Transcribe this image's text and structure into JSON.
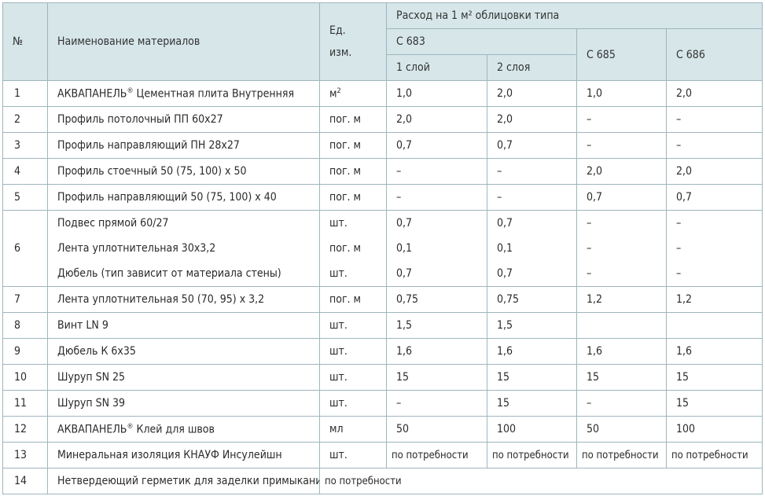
{
  "header": {
    "num": "№",
    "name": "Наименование материалов",
    "unit_line1": "Ед.",
    "unit_line2": "изм.",
    "consumption": "Расход на 1 м² облицовки типа",
    "c683": "С 683",
    "layer1": "1 слой",
    "layer2": "2 слоя",
    "c685": "С 685",
    "c686": "С 686"
  },
  "rows": [
    {
      "num": "1",
      "name": "АКВАПАНЕЛЬ® Цементная плита Внутренняя",
      "unit": "м²",
      "l1": "1,0",
      "l2": "2,0",
      "c685": "1,0",
      "c686": "2,0"
    },
    {
      "num": "2",
      "name": "Профиль потолочный ПП 60х27",
      "unit": "пог. м",
      "l1": "2,0",
      "l2": "2,0",
      "c685": "–",
      "c686": "–"
    },
    {
      "num": "3",
      "name": "Профиль направляющий ПН 28х27",
      "unit": "пог. м",
      "l1": "0,7",
      "l2": "0,7",
      "c685": "–",
      "c686": "–"
    },
    {
      "num": "4",
      "name": "Профиль стоечный 50 (75, 100) х 50",
      "unit": "пог. м",
      "l1": "–",
      "l2": "–",
      "c685": "2,0",
      "c686": "2,0"
    },
    {
      "num": "5",
      "name": "Профиль направляющий 50 (75, 100) х 40",
      "unit": "пог. м",
      "l1": "–",
      "l2": "–",
      "c685": "0,7",
      "c686": "0,7"
    }
  ],
  "row6": {
    "num": "6",
    "items": [
      {
        "name": "Подвес прямой 60/27",
        "unit": "шт.",
        "l1": "0,7",
        "l2": "0,7",
        "c685": "–",
        "c686": "–"
      },
      {
        "name": "Лента уплотнительная 30х3,2",
        "unit": "пог. м",
        "l1": "0,1",
        "l2": "0,1",
        "c685": "–",
        "c686": "–"
      },
      {
        "name": "Дюбель (тип зависит от материала стены)",
        "unit": "шт.",
        "l1": "0,7",
        "l2": "0,7",
        "c685": "–",
        "c686": "–"
      }
    ]
  },
  "rows2": [
    {
      "num": "7",
      "name": "Лента уплотнительная 50 (70, 95) х 3,2",
      "unit": "пог. м",
      "l1": "0,75",
      "l2": "0,75",
      "c685": "1,2",
      "c686": "1,2"
    },
    {
      "num": "8",
      "name": "Винт LN 9",
      "unit": "шт.",
      "l1": "1,5",
      "l2": "1,5",
      "c685": "",
      "c686": ""
    },
    {
      "num": "9",
      "name": "Дюбель К 6х35",
      "unit": "шт.",
      "l1": "1,6",
      "l2": "1,6",
      "c685": "1,6",
      "c686": "1,6"
    },
    {
      "num": "10",
      "name": "Шуруп SN 25",
      "unit": "шт.",
      "l1": "15",
      "l2": "15",
      "c685": "15",
      "c686": "15"
    },
    {
      "num": "11",
      "name": "Шуруп SN 39",
      "unit": "шт.",
      "l1": "–",
      "l2": "15",
      "c685": "–",
      "c686": "15"
    },
    {
      "num": "12",
      "name": "АКВАПАНЕЛЬ® Клей для швов",
      "unit": "мл",
      "l1": "50",
      "l2": "100",
      "c685": "50",
      "c686": "100"
    },
    {
      "num": "13",
      "name": "Минеральная изоляция КНАУФ Инсулейшн",
      "unit": "шт.",
      "l1": "по потребности",
      "l2": "по потребности",
      "c685": "по потребности",
      "c686": "по потребности"
    }
  ],
  "row14": {
    "num": "14",
    "name": "Нетвердеющий герметик для заделки примыканий",
    "value": "по потребности"
  }
}
